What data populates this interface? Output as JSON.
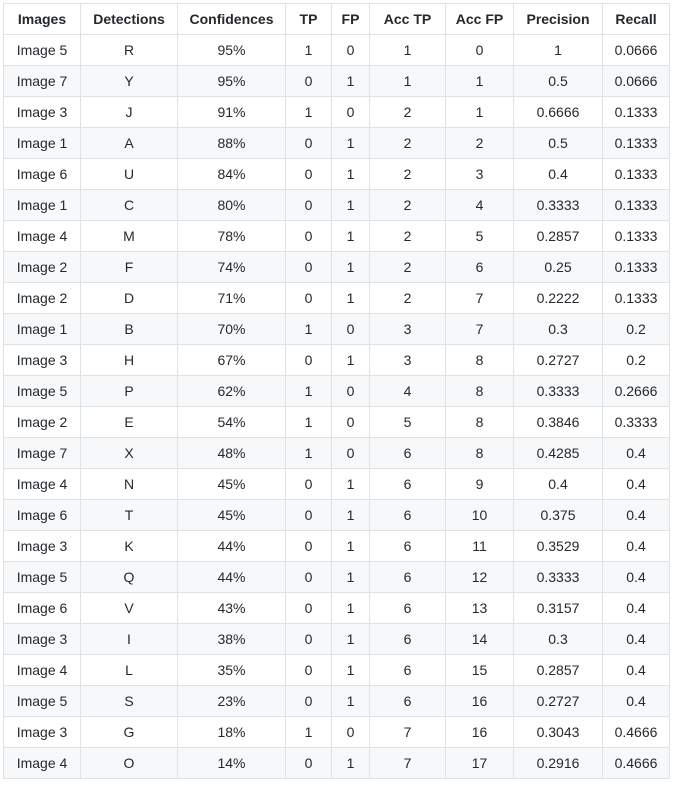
{
  "table": {
    "headers": [
      "Images",
      "Detections",
      "Confidences",
      "TP",
      "FP",
      "Acc TP",
      "Acc FP",
      "Precision",
      "Recall"
    ],
    "rows": [
      [
        "Image 5",
        "R",
        "95%",
        "1",
        "0",
        "1",
        "0",
        "1",
        "0.0666"
      ],
      [
        "Image 7",
        "Y",
        "95%",
        "0",
        "1",
        "1",
        "1",
        "0.5",
        "0.0666"
      ],
      [
        "Image 3",
        "J",
        "91%",
        "1",
        "0",
        "2",
        "1",
        "0.6666",
        "0.1333"
      ],
      [
        "Image 1",
        "A",
        "88%",
        "0",
        "1",
        "2",
        "2",
        "0.5",
        "0.1333"
      ],
      [
        "Image 6",
        "U",
        "84%",
        "0",
        "1",
        "2",
        "3",
        "0.4",
        "0.1333"
      ],
      [
        "Image 1",
        "C",
        "80%",
        "0",
        "1",
        "2",
        "4",
        "0.3333",
        "0.1333"
      ],
      [
        "Image 4",
        "M",
        "78%",
        "0",
        "1",
        "2",
        "5",
        "0.2857",
        "0.1333"
      ],
      [
        "Image 2",
        "F",
        "74%",
        "0",
        "1",
        "2",
        "6",
        "0.25",
        "0.1333"
      ],
      [
        "Image 2",
        "D",
        "71%",
        "0",
        "1",
        "2",
        "7",
        "0.2222",
        "0.1333"
      ],
      [
        "Image 1",
        "B",
        "70%",
        "1",
        "0",
        "3",
        "7",
        "0.3",
        "0.2"
      ],
      [
        "Image 3",
        "H",
        "67%",
        "0",
        "1",
        "3",
        "8",
        "0.2727",
        "0.2"
      ],
      [
        "Image 5",
        "P",
        "62%",
        "1",
        "0",
        "4",
        "8",
        "0.3333",
        "0.2666"
      ],
      [
        "Image 2",
        "E",
        "54%",
        "1",
        "0",
        "5",
        "8",
        "0.3846",
        "0.3333"
      ],
      [
        "Image 7",
        "X",
        "48%",
        "1",
        "0",
        "6",
        "8",
        "0.4285",
        "0.4"
      ],
      [
        "Image 4",
        "N",
        "45%",
        "0",
        "1",
        "6",
        "9",
        "0.4",
        "0.4"
      ],
      [
        "Image 6",
        "T",
        "45%",
        "0",
        "1",
        "6",
        "10",
        "0.375",
        "0.4"
      ],
      [
        "Image 3",
        "K",
        "44%",
        "0",
        "1",
        "6",
        "11",
        "0.3529",
        "0.4"
      ],
      [
        "Image 5",
        "Q",
        "44%",
        "0",
        "1",
        "6",
        "12",
        "0.3333",
        "0.4"
      ],
      [
        "Image 6",
        "V",
        "43%",
        "0",
        "1",
        "6",
        "13",
        "0.3157",
        "0.4"
      ],
      [
        "Image 3",
        "I",
        "38%",
        "0",
        "1",
        "6",
        "14",
        "0.3",
        "0.4"
      ],
      [
        "Image 4",
        "L",
        "35%",
        "0",
        "1",
        "6",
        "15",
        "0.2857",
        "0.4"
      ],
      [
        "Image 5",
        "S",
        "23%",
        "0",
        "1",
        "6",
        "16",
        "0.2727",
        "0.4"
      ],
      [
        "Image 3",
        "G",
        "18%",
        "1",
        "0",
        "7",
        "16",
        "0.3043",
        "0.4666"
      ],
      [
        "Image 4",
        "O",
        "14%",
        "0",
        "1",
        "7",
        "17",
        "0.2916",
        "0.4666"
      ]
    ]
  }
}
